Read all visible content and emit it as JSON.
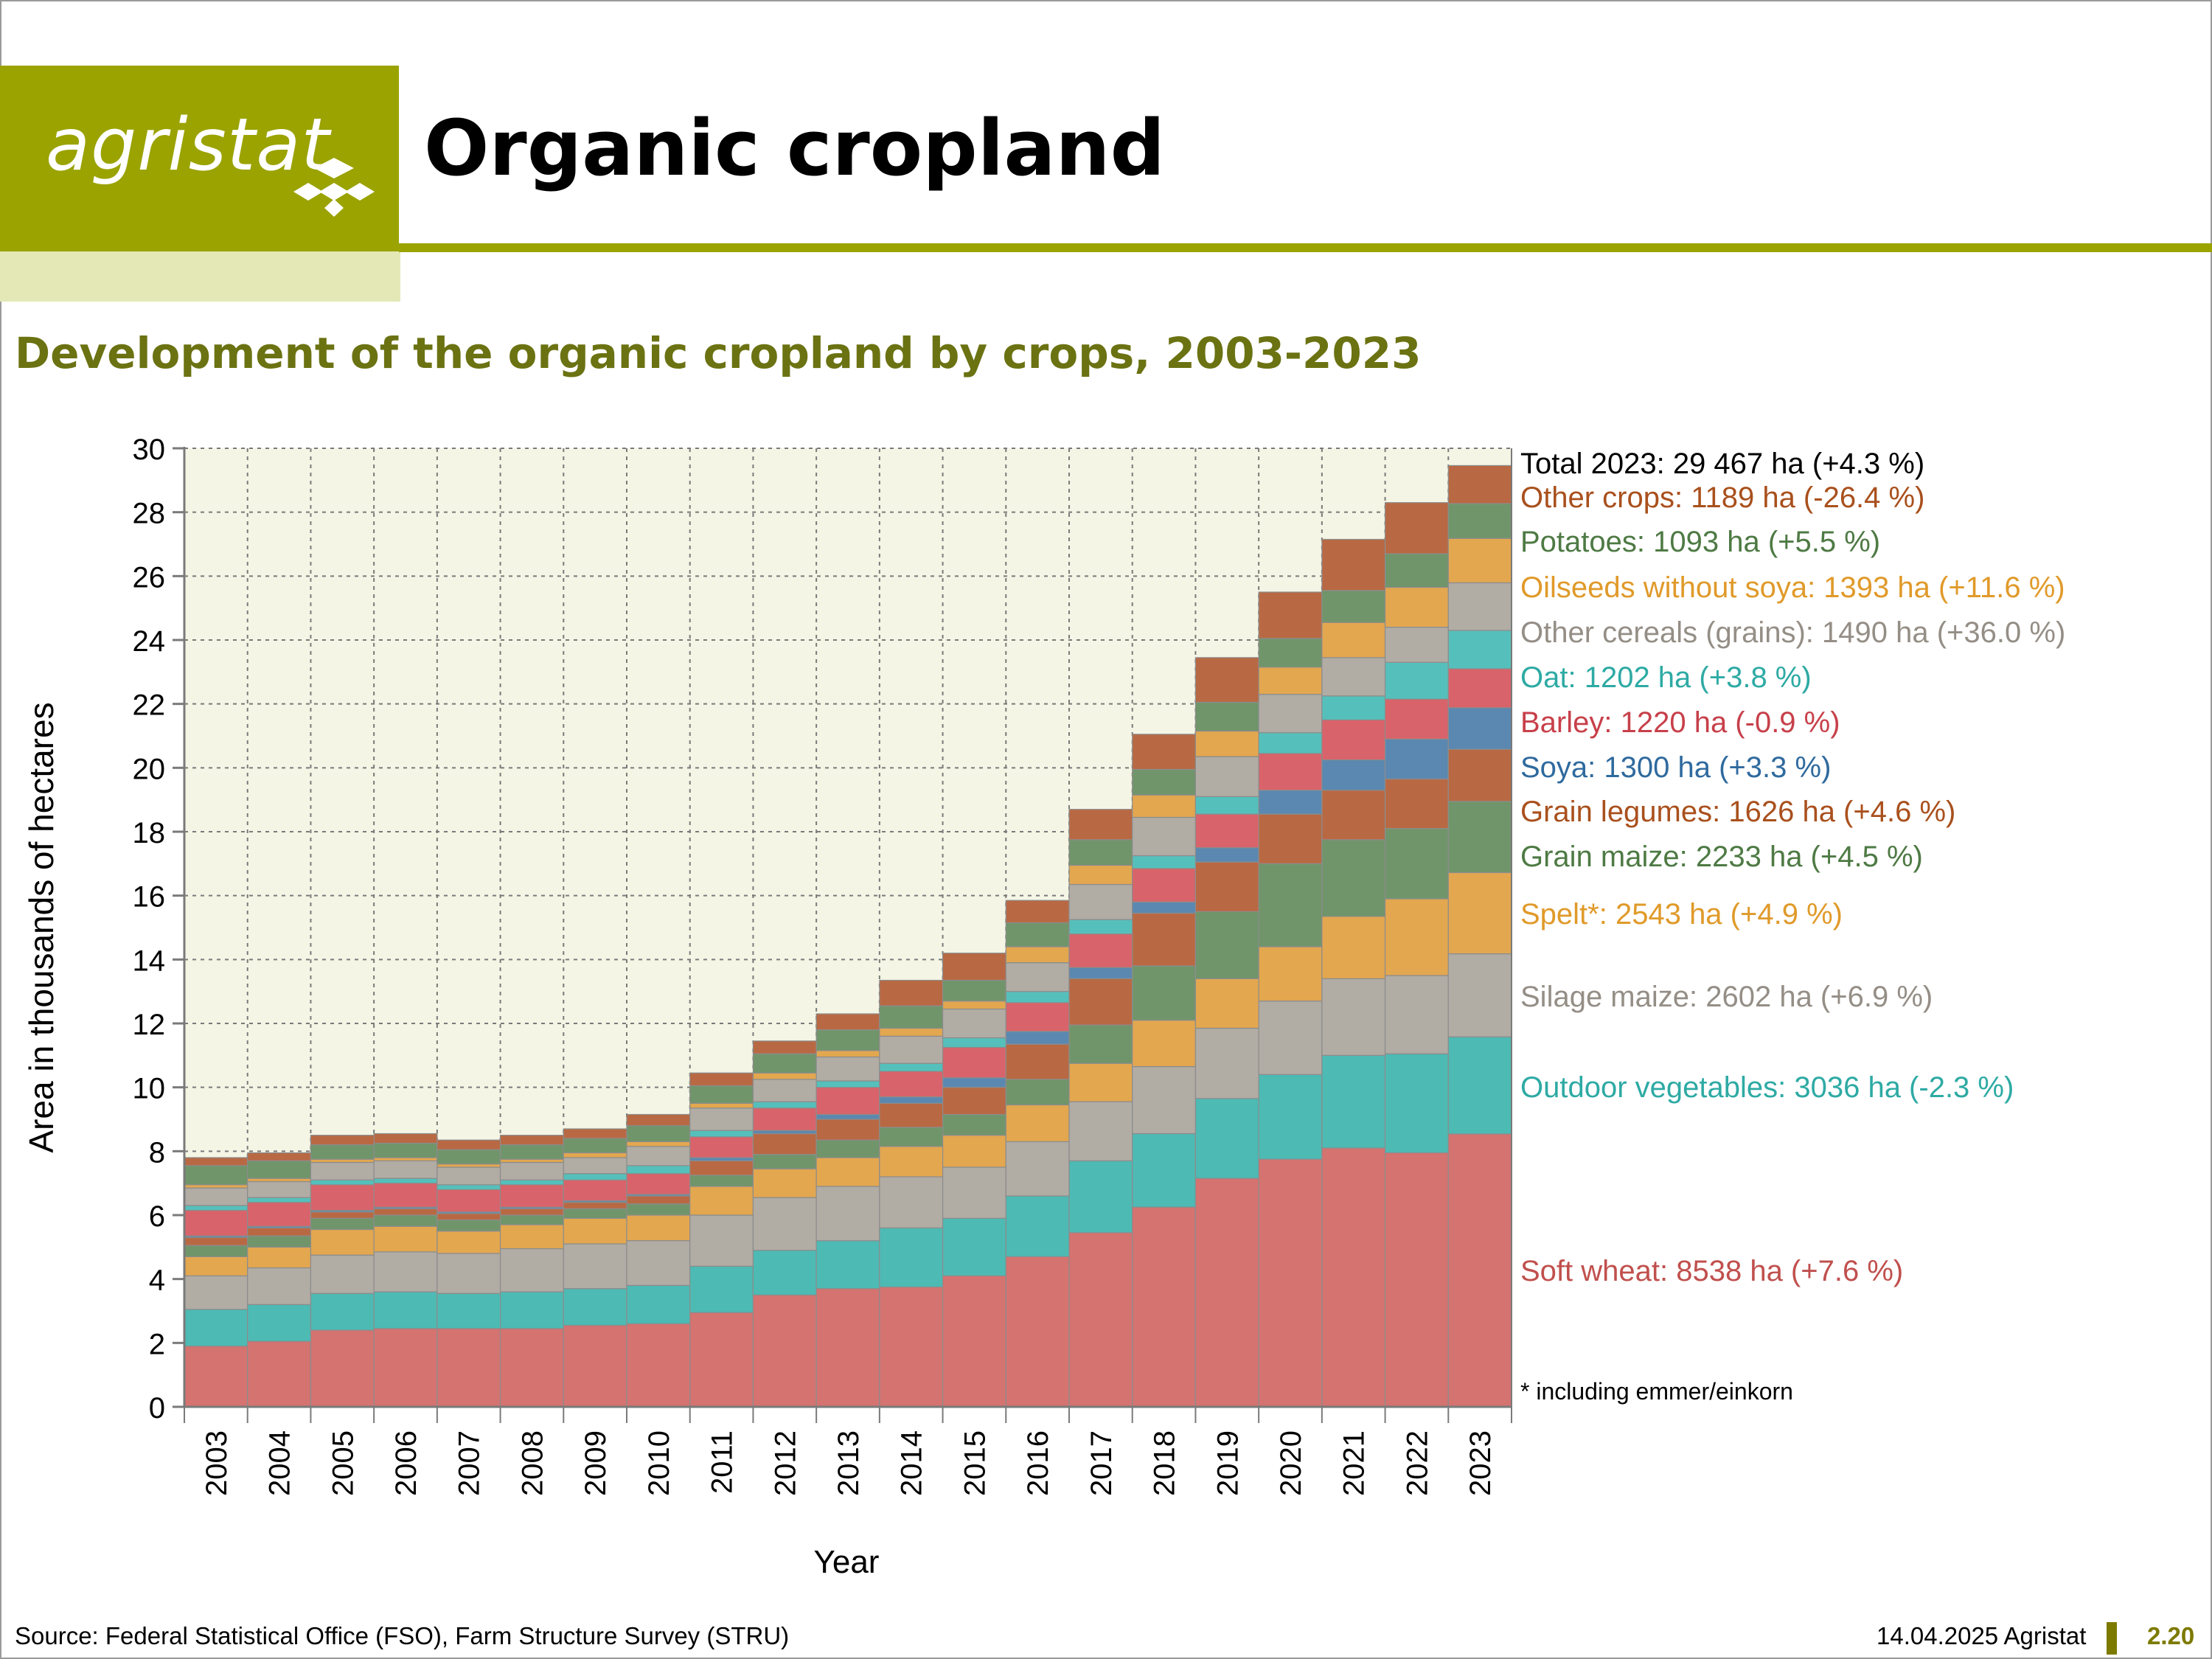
{
  "header": {
    "logo_text": "agristat",
    "title": "Organic cropland"
  },
  "chart_data": {
    "type": "bar",
    "stacked": true,
    "title": "Development of the organic cropland by crops, 2003-2023",
    "xlabel": "Year",
    "ylabel": "Area in thousands of hectares",
    "ylim": [
      0,
      30
    ],
    "yticks": [
      0,
      2,
      4,
      6,
      8,
      10,
      12,
      14,
      16,
      18,
      20,
      22,
      24,
      26,
      28,
      30
    ],
    "grid": true,
    "legend_placement": "right",
    "categories": [
      "2003",
      "2004",
      "2005",
      "2006",
      "2007",
      "2008",
      "2009",
      "2010",
      "2011",
      "2012",
      "2013",
      "2014",
      "2015",
      "2016",
      "2017",
      "2018",
      "2019",
      "2020",
      "2021",
      "2022",
      "2023"
    ],
    "series": [
      {
        "name": "Soft wheat",
        "color": "#d47370",
        "label": "Soft wheat: 8538 ha (+7.6 %)",
        "label_color": "#c0504d",
        "values": [
          1.9,
          2.05,
          2.4,
          2.45,
          2.45,
          2.45,
          2.55,
          2.6,
          2.95,
          3.5,
          3.7,
          3.75,
          4.1,
          4.7,
          5.45,
          6.25,
          7.15,
          7.75,
          8.1,
          7.95,
          8.54
        ]
      },
      {
        "name": "Outdoor vegetables",
        "color": "#4dbab4",
        "label": "Outdoor vegetables: 3036 ha (-2.3 %)",
        "label_color": "#2eaaa4",
        "values": [
          1.15,
          1.15,
          1.15,
          1.15,
          1.1,
          1.15,
          1.15,
          1.2,
          1.45,
          1.4,
          1.5,
          1.85,
          1.8,
          1.9,
          2.25,
          2.3,
          2.5,
          2.65,
          2.9,
          3.1,
          3.04
        ]
      },
      {
        "name": "Silage maize",
        "color": "#b1aca4",
        "label": "Silage maize: 2602 ha (+6.9 %)",
        "label_color": "#948e86",
        "values": [
          1.05,
          1.15,
          1.2,
          1.25,
          1.25,
          1.35,
          1.4,
          1.4,
          1.6,
          1.65,
          1.7,
          1.6,
          1.6,
          1.7,
          1.85,
          2.1,
          2.2,
          2.3,
          2.4,
          2.45,
          2.6
        ]
      },
      {
        "name": "Spelt*",
        "color": "#e3a74f",
        "label": "Spelt*: 2543 ha (+4.9 %)",
        "label_color": "#e09a2a",
        "values": [
          0.6,
          0.65,
          0.8,
          0.8,
          0.7,
          0.75,
          0.8,
          0.8,
          0.9,
          0.9,
          0.9,
          0.95,
          1.0,
          1.15,
          1.2,
          1.45,
          1.55,
          1.7,
          1.95,
          2.4,
          2.54
        ]
      },
      {
        "name": "Grain maize",
        "color": "#70956a",
        "label": "Grain maize: 2233 ha (+4.5 %)",
        "label_color": "#4e7a44",
        "values": [
          0.35,
          0.35,
          0.35,
          0.35,
          0.35,
          0.3,
          0.3,
          0.35,
          0.35,
          0.45,
          0.55,
          0.6,
          0.65,
          0.8,
          1.2,
          1.7,
          2.1,
          2.6,
          2.4,
          2.2,
          2.23
        ]
      },
      {
        "name": "Grain legumes",
        "color": "#b86943",
        "label": "Grain legumes: 1626 ha (+4.6 %)",
        "label_color": "#a9501d",
        "values": [
          0.25,
          0.25,
          0.2,
          0.2,
          0.2,
          0.2,
          0.2,
          0.25,
          0.45,
          0.65,
          0.65,
          0.75,
          0.85,
          1.1,
          1.45,
          1.65,
          1.55,
          1.55,
          1.55,
          1.55,
          1.63
        ]
      },
      {
        "name": "Soya",
        "color": "#5b88b0",
        "label": "Soya: 1300 ha (+3.3 %)",
        "label_color": "#2f6a9e",
        "values": [
          0.05,
          0.05,
          0.05,
          0.05,
          0.05,
          0.05,
          0.05,
          0.05,
          0.1,
          0.1,
          0.15,
          0.2,
          0.3,
          0.4,
          0.35,
          0.35,
          0.45,
          0.75,
          0.95,
          1.25,
          1.3
        ]
      },
      {
        "name": "Barley",
        "color": "#d9636a",
        "label": "Barley: 1220 ha (-0.9 %)",
        "label_color": "#c7404a",
        "values": [
          0.8,
          0.75,
          0.8,
          0.75,
          0.7,
          0.7,
          0.65,
          0.65,
          0.65,
          0.7,
          0.85,
          0.8,
          0.95,
          0.9,
          1.05,
          1.05,
          1.05,
          1.15,
          1.25,
          1.25,
          1.22
        ]
      },
      {
        "name": "Oat",
        "color": "#55c0bb",
        "label": "Oat: 1202 ha (+3.8 %)",
        "label_color": "#2eaaa4",
        "values": [
          0.15,
          0.15,
          0.15,
          0.15,
          0.15,
          0.15,
          0.2,
          0.25,
          0.2,
          0.2,
          0.2,
          0.25,
          0.3,
          0.35,
          0.45,
          0.4,
          0.55,
          0.65,
          0.75,
          1.15,
          1.2
        ]
      },
      {
        "name": "Other cereals (grains)",
        "color": "#b1aca4",
        "label": "Other cereals (grains): 1490 ha (+36.0 %)",
        "label_color": "#948e86",
        "values": [
          0.55,
          0.5,
          0.55,
          0.55,
          0.55,
          0.55,
          0.5,
          0.6,
          0.7,
          0.7,
          0.75,
          0.85,
          0.9,
          0.9,
          1.1,
          1.2,
          1.25,
          1.2,
          1.2,
          1.1,
          1.49
        ]
      },
      {
        "name": "Oilseeds without soya",
        "color": "#e3a74f",
        "label": "Oilseeds without soya: 1393 ha (+11.6 %)",
        "label_color": "#e09a2a",
        "values": [
          0.1,
          0.1,
          0.1,
          0.1,
          0.1,
          0.1,
          0.15,
          0.15,
          0.15,
          0.2,
          0.2,
          0.25,
          0.25,
          0.5,
          0.6,
          0.7,
          0.8,
          0.85,
          1.1,
          1.25,
          1.39
        ]
      },
      {
        "name": "Potatoes",
        "color": "#70956a",
        "label": "Potatoes: 1093 ha (+5.5 %)",
        "label_color": "#4e7a44",
        "values": [
          0.6,
          0.55,
          0.45,
          0.45,
          0.45,
          0.45,
          0.45,
          0.5,
          0.55,
          0.6,
          0.65,
          0.7,
          0.65,
          0.75,
          0.8,
          0.8,
          0.9,
          0.9,
          1.0,
          1.05,
          1.09
        ]
      },
      {
        "name": "Other crops",
        "color": "#b86943",
        "label": "Other crops: 1189 ha (-26.4 %)",
        "label_color": "#a9501d",
        "values": [
          0.25,
          0.25,
          0.3,
          0.3,
          0.3,
          0.3,
          0.3,
          0.35,
          0.4,
          0.4,
          0.5,
          0.8,
          0.85,
          0.7,
          0.95,
          1.1,
          1.4,
          1.45,
          1.6,
          1.6,
          1.19
        ]
      }
    ],
    "annotations": {
      "total": "Total 2023: 29 467 ha (+4.3 %)",
      "footnote": "* including emmer/einkorn"
    }
  },
  "footer": {
    "source": "Source: Federal Statistical Office (FSO), Farm Structure Survey (STRU)",
    "date": "14.04.2025 Agristat",
    "page_number": "2.20"
  },
  "colors": {
    "brand": "#9aa300",
    "brand_light": "#e4e8b6",
    "subtitle": "#6b7212",
    "plot_background": "#f4f5e4"
  }
}
